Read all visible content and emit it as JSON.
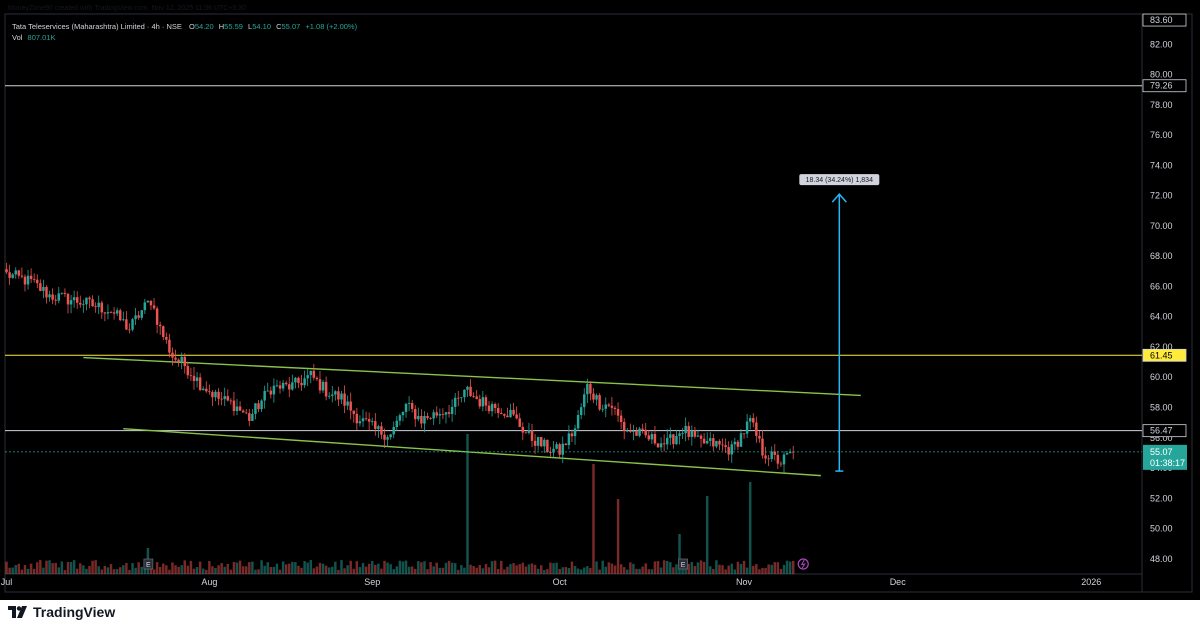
{
  "header": {
    "credit": "MoneyZone90 created with TradingView.com, Nov 12, 2025 11:36 UTC+5:30",
    "symbol": "Tata Teleservices (Maharashtra) Limited · 4h · NSE",
    "ohlc": [
      {
        "k": "O",
        "v": "54.20"
      },
      {
        "k": "H",
        "v": "55.59"
      },
      {
        "k": "L",
        "v": "54.10"
      },
      {
        "k": "C",
        "v": "55.07"
      }
    ],
    "change": "+1.08 (+2.00%)",
    "vol_label": "Vol",
    "vol_value": "807.01K"
  },
  "footer": {
    "brand": "TradingView"
  },
  "colors": {
    "background": "#000000",
    "up": "#26a69a",
    "down": "#ef5350",
    "channel": "#8bc34a",
    "level_yellow": "#ffeb3b",
    "level_white": "#d1d4dc",
    "measure": "#29b6f6",
    "price_tag": "#26a69a"
  },
  "chart_data": {
    "type": "candlestick",
    "y_axis": {
      "min": 47,
      "max": 84,
      "ticks": [
        "48.00",
        "50.00",
        "52.00",
        "54.00",
        "56.00",
        "58.00",
        "60.00",
        "62.00",
        "64.00",
        "66.00",
        "68.00",
        "70.00",
        "72.00",
        "74.00",
        "76.00",
        "78.00",
        "80.00",
        "82.00"
      ]
    },
    "x_axis": {
      "labels": [
        {
          "label": "Jul",
          "bar": 0
        },
        {
          "label": "Aug",
          "bar": 66
        },
        {
          "label": "Sep",
          "bar": 119
        },
        {
          "label": "Oct",
          "bar": 180
        },
        {
          "label": "Nov",
          "bar": 240
        },
        {
          "label": "Dec",
          "bar": 290
        },
        {
          "label": "2026",
          "bar": 353
        }
      ]
    },
    "bars_total_visible": 370,
    "price_path": [
      [
        0,
        66.8
      ],
      [
        8,
        66.3
      ],
      [
        14,
        65.4
      ],
      [
        24,
        65.0
      ],
      [
        34,
        64.4
      ],
      [
        40,
        63.2
      ],
      [
        44,
        64.4
      ],
      [
        47,
        65.1
      ],
      [
        50,
        63.2
      ],
      [
        54,
        61.4
      ],
      [
        58,
        60.8
      ],
      [
        63,
        59.6
      ],
      [
        69,
        58.6
      ],
      [
        74,
        58.2
      ],
      [
        79,
        57.3
      ],
      [
        86,
        59.3
      ],
      [
        93,
        59.4
      ],
      [
        99,
        60.1
      ],
      [
        104,
        59.1
      ],
      [
        109,
        58.6
      ],
      [
        114,
        57.4
      ],
      [
        120,
        56.5
      ],
      [
        125,
        56.2
      ],
      [
        130,
        58.1
      ],
      [
        135,
        57.2
      ],
      [
        140,
        57.6
      ],
      [
        145,
        58.0
      ],
      [
        150,
        59.1
      ],
      [
        154,
        58.4
      ],
      [
        160,
        58.0
      ],
      [
        164,
        57.6
      ],
      [
        170,
        56.1
      ],
      [
        176,
        55.3
      ],
      [
        180,
        55.1
      ],
      [
        185,
        56.6
      ],
      [
        189,
        59.4
      ],
      [
        193,
        58.3
      ],
      [
        197,
        58.1
      ],
      [
        201,
        56.6
      ],
      [
        205,
        56.3
      ],
      [
        210,
        55.9
      ],
      [
        215,
        55.6
      ],
      [
        220,
        56.6
      ],
      [
        225,
        55.7
      ],
      [
        230,
        55.6
      ],
      [
        236,
        55.2
      ],
      [
        242,
        57.1
      ],
      [
        246,
        55.1
      ],
      [
        250,
        54.6
      ],
      [
        252,
        54.4
      ],
      [
        256,
        55.07
      ]
    ],
    "events": [
      {
        "label": "E",
        "bar": 46
      },
      {
        "label": "E",
        "bar": 220
      }
    ],
    "annotations": {
      "channel_upper": {
        "start": {
          "bar": 25,
          "price": 61.3
        },
        "end": {
          "bar": 278,
          "price": 58.8
        }
      },
      "channel_lower": {
        "start": {
          "bar": 38,
          "price": 56.6
        },
        "end": {
          "bar": 265,
          "price": 53.5
        }
      },
      "levels": [
        {
          "price": 79.26,
          "label": "79.26",
          "color": "#d1d4dc"
        },
        {
          "price": 61.45,
          "label": "61.45",
          "color": "#ffeb3b"
        },
        {
          "price": 56.47,
          "label": "56.47",
          "color": "#d1d4dc"
        }
      ],
      "current_price": {
        "price": 55.07,
        "label": "55.07",
        "countdown": "01:38:17"
      },
      "scale_top_label": "83.60",
      "measure": {
        "bar": 271,
        "from_price": 53.8,
        "to_price": 72.1,
        "text": "18.34 (34.24%) 1,834"
      }
    }
  }
}
